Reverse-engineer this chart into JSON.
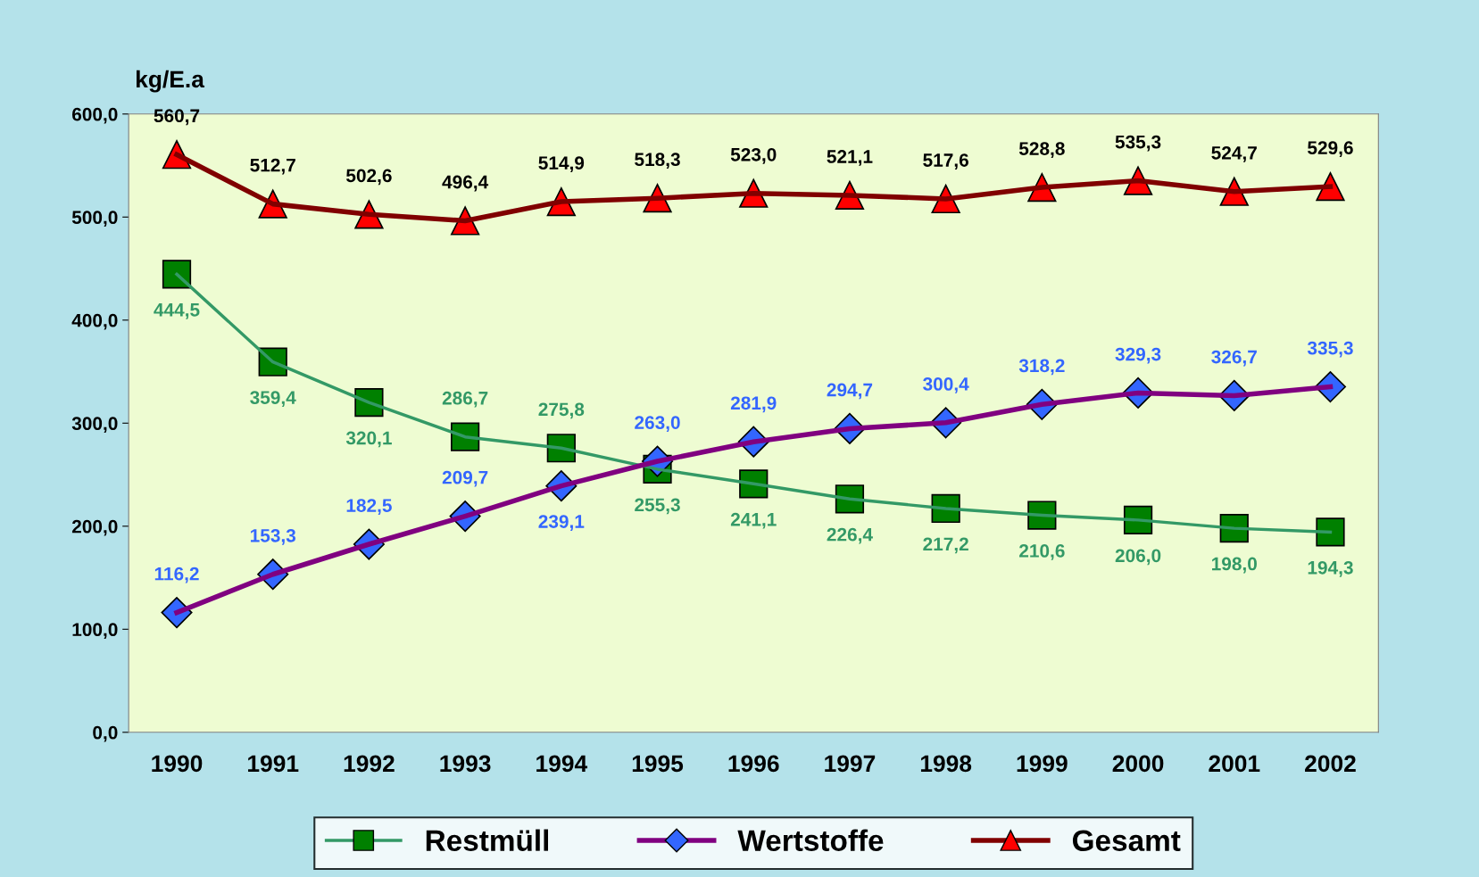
{
  "chart_data": {
    "type": "line",
    "ylabel": "kg/E.a",
    "categories": [
      "1990",
      "1991",
      "1992",
      "1993",
      "1994",
      "1995",
      "1996",
      "1997",
      "1998",
      "1999",
      "2000",
      "2001",
      "2002"
    ],
    "series": [
      {
        "name": "Restmüll",
        "color": "#339966",
        "marker": "square",
        "colors": [
          "#008000",
          "#008000",
          "#008000",
          "#008000",
          "#008000",
          "#008000",
          "#008000",
          "#008000",
          "#008000",
          "#008000",
          "#008000",
          "#008000",
          "#008000"
        ],
        "value_labels": [
          "444,5",
          "359,4",
          "320,1",
          "286,7",
          "275,8",
          "255,3",
          "241,1",
          "226,4",
          "217,2",
          "210,6",
          "206,0",
          "198,0",
          "194,3"
        ],
        "values": [
          444.5,
          359.4,
          320.1,
          286.7,
          275.8,
          255.3,
          241.1,
          226.4,
          217.2,
          210.6,
          206.0,
          198.0,
          194.3
        ]
      },
      {
        "name": "Wertstoffe",
        "color": "#800080",
        "marker": "diamond",
        "colors": [
          "#3366ff",
          "#3366ff",
          "#3366ff",
          "#3366ff",
          "#3366ff",
          "#3366ff",
          "#3366ff",
          "#3366ff",
          "#3366ff",
          "#3366ff",
          "#3366ff",
          "#3366ff",
          "#3366ff"
        ],
        "value_labels": [
          "116,2",
          "153,3",
          "182,5",
          "209,7",
          "239,1",
          "263,0",
          "281,9",
          "294,7",
          "300,4",
          "318,2",
          "329,3",
          "326,7",
          "335,3"
        ],
        "values": [
          116.2,
          153.3,
          182.5,
          209.7,
          239.1,
          263.0,
          281.9,
          294.7,
          300.4,
          318.2,
          329.3,
          326.7,
          335.3
        ]
      },
      {
        "name": "Gesamt",
        "color": "#800000",
        "marker": "triangle",
        "colors": [
          "#ff0000",
          "#ff0000",
          "#ff0000",
          "#ff0000",
          "#ff0000",
          "#ff0000",
          "#ff0000",
          "#ff0000",
          "#ff0000",
          "#ff0000",
          "#ff0000",
          "#ff0000",
          "#ff0000"
        ],
        "value_labels": [
          "560,7",
          "512,7",
          "502,6",
          "496,4",
          "514,9",
          "518,3",
          "523,0",
          "521,1",
          "517,6",
          "528,8",
          "535,3",
          "524,7",
          "529,6"
        ],
        "values": [
          560.7,
          512.7,
          502.6,
          496.4,
          514.9,
          518.3,
          523.0,
          521.1,
          517.6,
          528.8,
          535.3,
          524.7,
          529.6
        ]
      }
    ],
    "ylim": [
      0,
      600
    ],
    "yticks": [
      {
        "value": 0,
        "label": "0,0"
      },
      {
        "value": 100,
        "label": "100,0"
      },
      {
        "value": 200,
        "label": "200,0"
      },
      {
        "value": 300,
        "label": "300,0"
      },
      {
        "value": 400,
        "label": "400,0"
      },
      {
        "value": 500,
        "label": "500,0"
      },
      {
        "value": 600,
        "label": "600,0"
      }
    ],
    "grid": false,
    "legend": "bottom"
  }
}
